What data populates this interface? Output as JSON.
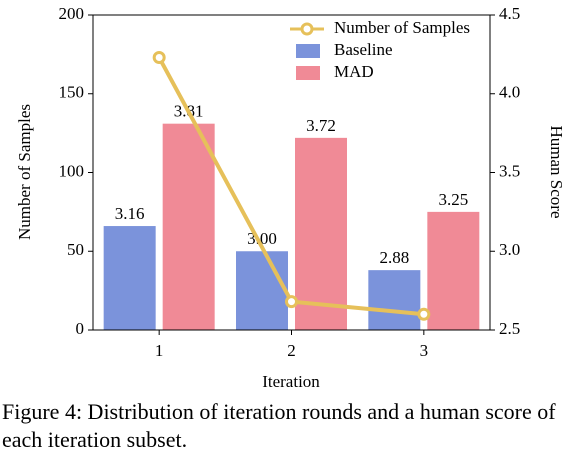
{
  "chart_data": {
    "type": "bar",
    "xlabel": "Iteration",
    "ylabel": "Number of Samples",
    "y2label": "Human Score",
    "caption": "Figure 4: Distribution of iteration rounds and a human score of each iteration subset.",
    "categories": [
      "1",
      "2",
      "3"
    ],
    "ylim": [
      0,
      200
    ],
    "yticks": [
      0,
      50,
      100,
      150,
      200
    ],
    "y2lim": [
      2.5,
      4.5
    ],
    "y2ticks": [
      2.5,
      {
        "value": 3,
        "label": "3.0"
      },
      3.5,
      {
        "value": 4,
        "label": "4.0"
      },
      4.5
    ],
    "legend": "upper right",
    "series": [
      {
        "name": "Number of Samples",
        "type": "line",
        "axis": "y",
        "color": "#e6c05a",
        "values": [
          173,
          18,
          10
        ]
      },
      {
        "name": "Baseline",
        "type": "bar",
        "axis": "y2",
        "color": "#7b93db",
        "values": [
          3.16,
          3,
          2.88
        ],
        "value_labels": [
          "3.16",
          "3.00",
          "2.88"
        ]
      },
      {
        "name": "MAD",
        "type": "bar",
        "axis": "y2",
        "color": "#f08a96",
        "values": [
          3.81,
          3.72,
          3.25
        ],
        "value_labels": [
          "3.81",
          "3.72",
          "3.25"
        ]
      }
    ]
  }
}
